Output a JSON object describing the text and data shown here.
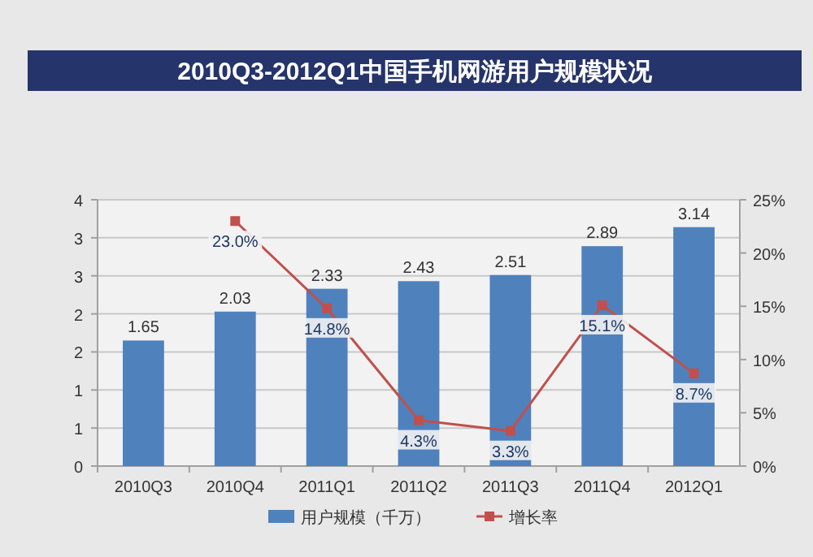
{
  "chart_data": {
    "type": "bar",
    "title": "2010Q3-2012Q1中国手机网游用户规模状况",
    "categories": [
      "2010Q3",
      "2010Q4",
      "2011Q1",
      "2011Q2",
      "2011Q3",
      "2011Q4",
      "2012Q1"
    ],
    "series": [
      {
        "name": "用户规模（千万）",
        "color": "#4f81bd",
        "values": [
          1.65,
          2.03,
          2.33,
          2.43,
          2.51,
          2.89,
          3.14
        ],
        "value_labels": [
          "1.65",
          "2.03",
          "2.33",
          "2.43",
          "2.51",
          "2.89",
          "3.14"
        ]
      },
      {
        "name": "增长率",
        "type": "line",
        "axis": "y2",
        "color": "#c0504d",
        "marker": "square",
        "values": [
          null,
          23.0,
          14.8,
          4.3,
          3.3,
          15.1,
          8.7
        ],
        "value_labels": [
          null,
          "23.0%",
          "14.8%",
          "4.3%",
          "3.3%",
          "15.1%",
          "8.7%"
        ]
      }
    ],
    "ylim": [
      0,
      3.5
    ],
    "yticks": [
      {
        "value": 0,
        "label": "0"
      },
      {
        "value": 0.5,
        "label": "1"
      },
      {
        "value": 1,
        "label": "1"
      },
      {
        "value": 1.5,
        "label": "2"
      },
      {
        "value": 2,
        "label": "2"
      },
      {
        "value": 2.5,
        "label": "3"
      },
      {
        "value": 3,
        "label": "3"
      },
      {
        "value": 3.5,
        "label": "4"
      }
    ],
    "y2lim": [
      0,
      25
    ],
    "y2ticks": [
      {
        "value": 0,
        "label": "0%"
      },
      {
        "value": 5,
        "label": "5%"
      },
      {
        "value": 10,
        "label": "10%"
      },
      {
        "value": 15,
        "label": "15%"
      },
      {
        "value": 20,
        "label": "20%"
      },
      {
        "value": 25,
        "label": "25%"
      }
    ],
    "grid": "y",
    "legend": "bottom"
  }
}
